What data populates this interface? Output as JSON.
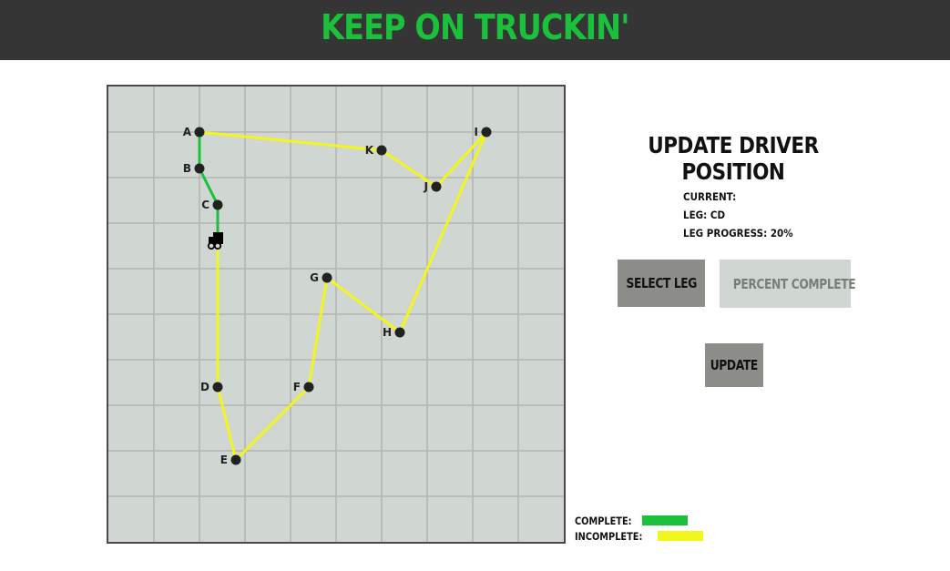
{
  "header": {
    "title": "KEEP ON TRUCKIN'"
  },
  "colors": {
    "header_bg": "#353535",
    "title": "#19c23a",
    "map_bg": "#d0d6d1",
    "grid": "#b3b3b3",
    "complete": "#19c23a",
    "incomplete": "#f2f51e",
    "stop": "#222222"
  },
  "map": {
    "grid_cells": 10,
    "stops": [
      {
        "name": "A",
        "x": 2,
        "y": 1
      },
      {
        "name": "B",
        "x": 2,
        "y": 1.8
      },
      {
        "name": "C",
        "x": 2.4,
        "y": 2.6
      },
      {
        "name": "D",
        "x": 2.4,
        "y": 6.6
      },
      {
        "name": "E",
        "x": 2.8,
        "y": 8.2
      },
      {
        "name": "F",
        "x": 4.4,
        "y": 6.6
      },
      {
        "name": "G",
        "x": 4.8,
        "y": 4.2
      },
      {
        "name": "H",
        "x": 6.4,
        "y": 5.4
      },
      {
        "name": "I",
        "x": 8.3,
        "y": 1
      },
      {
        "name": "J",
        "x": 7.2,
        "y": 2.2
      },
      {
        "name": "K",
        "x": 6,
        "y": 1.4
      }
    ],
    "route": [
      "A",
      "B",
      "C",
      "D",
      "E",
      "F",
      "G",
      "H",
      "I",
      "J",
      "K",
      "A"
    ],
    "truck": {
      "icon": "truck-icon",
      "leg": "CD",
      "progress": 0.2
    }
  },
  "panel": {
    "title": "UPDATE DRIVER POSITION",
    "current_label": "CURRENT:",
    "leg_text": "LEG: CD",
    "progress_text": "LEG PROGRESS: 20%",
    "select_leg_label": "SELECT LEG",
    "percent_complete_label": "PERCENT COMPLETE",
    "update_label": "UPDATE"
  },
  "legend": {
    "complete_label": "COMPLETE:",
    "incomplete_label": "INCOMPLETE:"
  }
}
